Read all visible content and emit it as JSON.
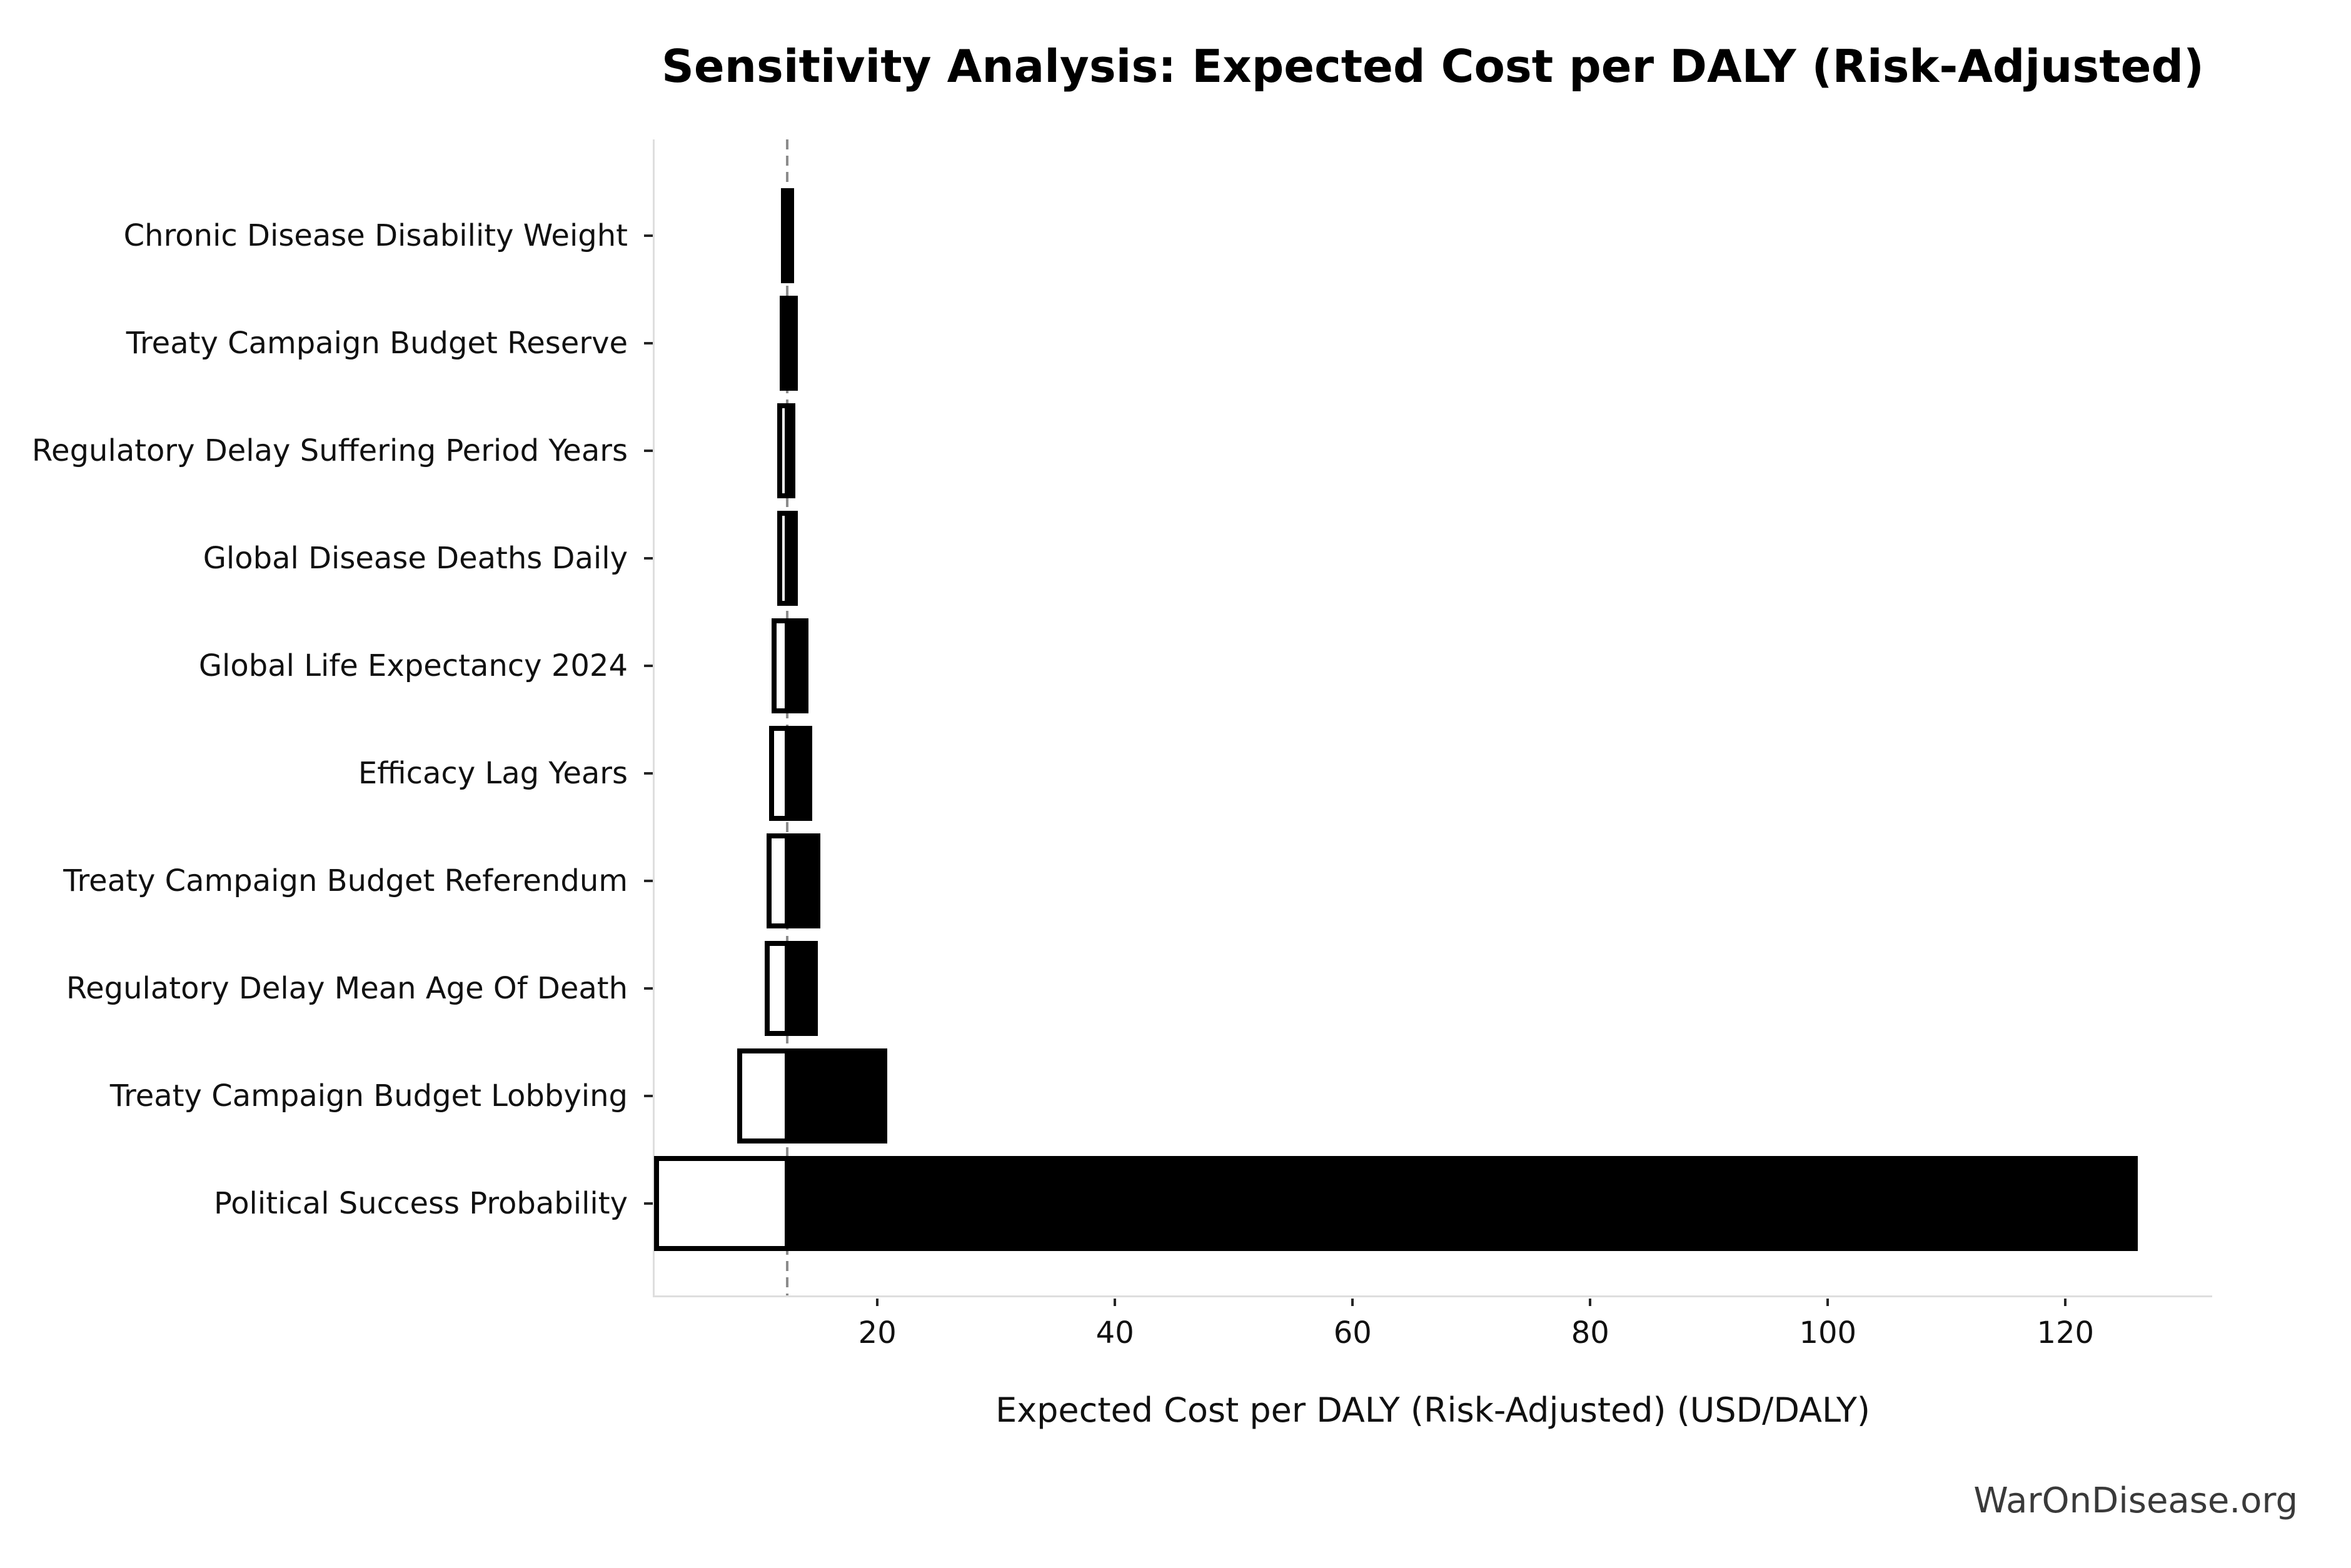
{
  "watermark": {
    "label": "WarOnDisease.org"
  },
  "chart_data": {
    "type": "bar",
    "variant": "tornado-sensitivity",
    "orientation": "horizontal",
    "title": "Sensitivity Analysis: Expected Cost per DALY (Risk-Adjusted)",
    "xlabel": "Expected Cost per DALY (Risk-Adjusted) (USD/DALY)",
    "ylabel": "",
    "grid": false,
    "legend": null,
    "baseline": 12.4,
    "xlim": [
      1.2,
      132.3
    ],
    "xticks": [
      20,
      40,
      60,
      80,
      100,
      120
    ],
    "categories": [
      "Chronic Disease Disability Weight",
      "Treaty Campaign Budget Reserve",
      "Regulatory Delay Suffering Period Years",
      "Global Disease Deaths Daily",
      "Global Life Expectancy 2024",
      "Efficacy Lag Years",
      "Treaty Campaign Budget Referendum",
      "Regulatory Delay Mean Age Of Death",
      "Treaty Campaign Budget Lobbying",
      "Political Success Probability"
    ],
    "series": [
      {
        "name": "low_estimate",
        "fill": "white",
        "values": [
          12.1,
          12.0,
          11.8,
          11.8,
          11.3,
          11.1,
          10.9,
          10.7,
          8.4,
          1.4
        ]
      },
      {
        "name": "high_estimate",
        "fill": "black",
        "values": [
          12.8,
          13.1,
          12.9,
          13.1,
          14.0,
          14.3,
          15.0,
          14.8,
          20.6,
          125.9
        ]
      }
    ],
    "colors": {
      "low_fill": "#ffffff",
      "high_fill": "#000000",
      "bar_edge": "#000000",
      "baseline_line": "#8c8c8c",
      "spine": "#dedede",
      "tick": "#262626",
      "text": "#111111",
      "watermark_text": "#3a3a3a",
      "background": "#ffffff"
    }
  }
}
